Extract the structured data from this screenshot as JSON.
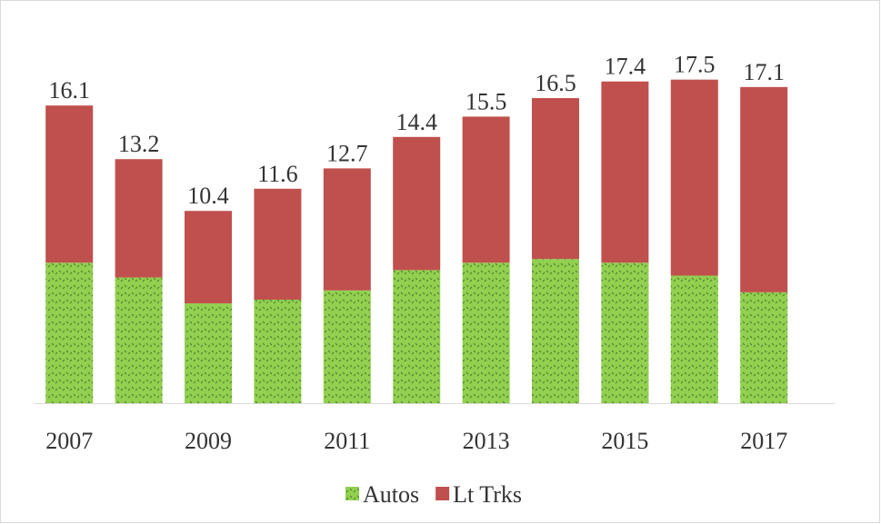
{
  "chart_data": {
    "type": "stacked_bar",
    "categories": [
      "2007",
      null,
      "2009",
      null,
      "2011",
      null,
      "2013",
      null,
      "2015",
      null,
      "2017"
    ],
    "series": [
      {
        "name": "Autos",
        "color": "#92d050",
        "values": [
          7.6,
          6.8,
          5.4,
          5.6,
          6.1,
          7.2,
          7.6,
          7.8,
          7.6,
          6.9,
          6.0
        ]
      },
      {
        "name": "Lt Trks",
        "color": "#c0504d",
        "values": [
          8.5,
          6.4,
          5.0,
          6.0,
          6.6,
          7.2,
          7.9,
          8.7,
          9.8,
          10.6,
          11.1
        ]
      }
    ],
    "totals": [
      16.1,
      13.2,
      10.4,
      11.6,
      12.7,
      14.4,
      15.5,
      16.5,
      17.4,
      17.5,
      17.1
    ],
    "ylim": [
      0,
      18
    ],
    "legend": "bottom"
  }
}
